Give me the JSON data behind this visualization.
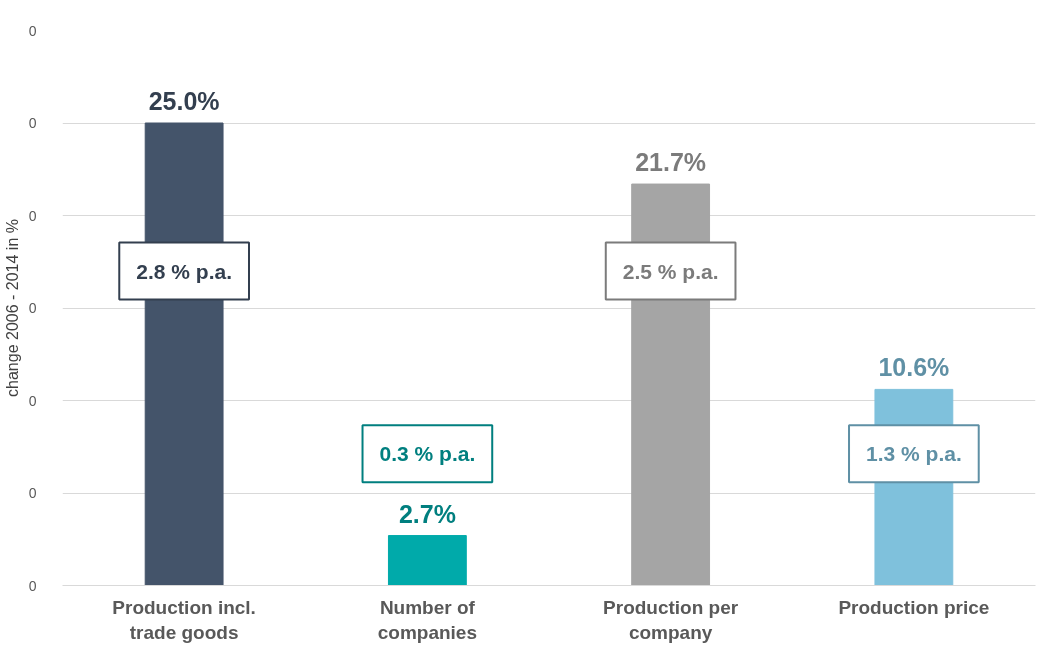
{
  "chart_data": {
    "type": "bar",
    "ylabel": "change 2006 - 2014 in %",
    "categories": [
      "Production incl. trade goods",
      "Number of companies",
      "Production per company",
      "Production price"
    ],
    "values": [
      25.0,
      2.7,
      21.7,
      10.6
    ],
    "colors": [
      "#44546a",
      "#00aaaa",
      "#a5a5a5",
      "#7fc1dc"
    ],
    "value_labels": [
      "25.0%",
      "2.7%",
      "21.7%",
      "10.6%"
    ],
    "grid": "y",
    "annotations": [
      "0",
      "0",
      "0",
      "0",
      "0",
      "0",
      "0",
      "2.8 % p.a.",
      "0.3 % p.a.",
      "2.5 % p.a.",
      "1.3 % p.a."
    ]
  }
}
